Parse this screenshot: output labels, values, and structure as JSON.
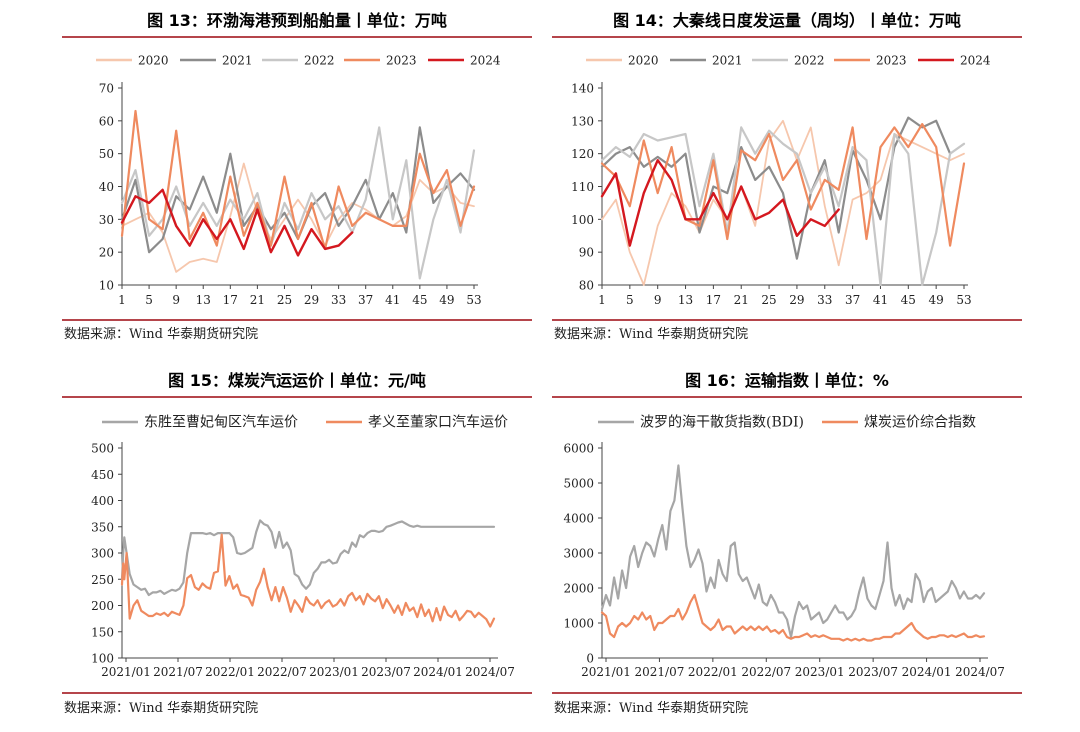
{
  "source_note": "数据来源：Wind 华泰期货研究院",
  "chart_data": [
    {
      "id": "c13",
      "type": "line",
      "title": "图 13：环渤海港预到船舶量丨单位：万吨",
      "xlabel": "",
      "ylabel": "",
      "ylim": [
        10,
        70
      ],
      "yticks": [
        "10",
        "20",
        "30",
        "40",
        "50",
        "60",
        "70"
      ],
      "xlim": [
        1,
        53
      ],
      "xticks": [
        "1",
        "5",
        "9",
        "13",
        "17",
        "21",
        "25",
        "29",
        "33",
        "37",
        "41",
        "45",
        "49",
        "53"
      ],
      "legend_position": "top",
      "x": [
        1,
        3,
        5,
        7,
        9,
        11,
        13,
        15,
        17,
        19,
        21,
        23,
        25,
        27,
        29,
        31,
        33,
        35,
        37,
        39,
        41,
        43,
        45,
        47,
        49,
        51,
        53
      ],
      "series": [
        {
          "name": "2020",
          "color": "#f6c7ad",
          "width": 1.8,
          "values": [
            28,
            30,
            32,
            26,
            14,
            17,
            18,
            17,
            31,
            47,
            32,
            24,
            30,
            36,
            30,
            22,
            30,
            35,
            33,
            30,
            28,
            31,
            42,
            38,
            40,
            35,
            34
          ]
        },
        {
          "name": "2021",
          "color": "#8c8c8c",
          "width": 2.2,
          "values": [
            30,
            42,
            20,
            24,
            37,
            33,
            43,
            32,
            50,
            28,
            34,
            27,
            32,
            24,
            34,
            38,
            28,
            34,
            42,
            30,
            38,
            26,
            58,
            35,
            40,
            44,
            39
          ]
        },
        {
          "name": "2022",
          "color": "#c7c7c7",
          "width": 2.2,
          "values": [
            35,
            45,
            25,
            30,
            40,
            28,
            35,
            28,
            36,
            30,
            38,
            22,
            35,
            27,
            38,
            30,
            34,
            26,
            36,
            58,
            30,
            48,
            12,
            30,
            42,
            26,
            51
          ]
        },
        {
          "name": "2023",
          "color": "#ef8a5f",
          "width": 2.2,
          "values": [
            25,
            63,
            30,
            27,
            57,
            24,
            32,
            22,
            43,
            25,
            35,
            22,
            43,
            24,
            35,
            21,
            40,
            28,
            32,
            30,
            28,
            28,
            50,
            38,
            45,
            28,
            40
          ]
        },
        {
          "name": "2024",
          "color": "#d4181f",
          "width": 2.4,
          "values": [
            29,
            37,
            35,
            39,
            28,
            22,
            30,
            24,
            30,
            21,
            33,
            20,
            28,
            19,
            27,
            21,
            22,
            26,
            null,
            null,
            null,
            null,
            null,
            null,
            null,
            null,
            null
          ]
        }
      ]
    },
    {
      "id": "c14",
      "type": "line",
      "title": "图 14：大秦线日度发运量（周均）丨单位：万吨",
      "xlabel": "",
      "ylabel": "",
      "ylim": [
        80,
        140
      ],
      "yticks": [
        "80",
        "90",
        "100",
        "110",
        "120",
        "130",
        "140"
      ],
      "xlim": [
        1,
        53
      ],
      "xticks": [
        "1",
        "5",
        "9",
        "13",
        "17",
        "21",
        "25",
        "29",
        "33",
        "37",
        "41",
        "45",
        "49",
        "53"
      ],
      "legend_position": "top",
      "x": [
        1,
        3,
        5,
        7,
        9,
        11,
        13,
        15,
        17,
        19,
        21,
        23,
        25,
        27,
        29,
        31,
        33,
        35,
        37,
        39,
        41,
        43,
        45,
        47,
        49,
        51,
        53
      ],
      "series": [
        {
          "name": "2020",
          "color": "#f6c7ad",
          "width": 1.8,
          "values": [
            100,
            106,
            90,
            80,
            98,
            108,
            104,
            96,
            106,
            100,
            110,
            98,
            124,
            130,
            118,
            128,
            104,
            86,
            106,
            108,
            112,
            126,
            124,
            122,
            120,
            118,
            120
          ]
        },
        {
          "name": "2021",
          "color": "#8c8c8c",
          "width": 2.2,
          "values": [
            116,
            120,
            122,
            116,
            119,
            116,
            120,
            96,
            110,
            108,
            122,
            112,
            116,
            108,
            88,
            108,
            118,
            96,
            121,
            112,
            100,
            122,
            131,
            128,
            130,
            120,
            null
          ]
        },
        {
          "name": "2022",
          "color": "#c7c7c7",
          "width": 2.2,
          "values": [
            118,
            122,
            119,
            126,
            124,
            125,
            126,
            104,
            120,
            96,
            128,
            120,
            127,
            123,
            120,
            108,
            116,
            104,
            122,
            118,
            80,
            126,
            120,
            80,
            96,
            120,
            123
          ]
        },
        {
          "name": "2023",
          "color": "#ef8a5f",
          "width": 2.2,
          "values": [
            117,
            113,
            104,
            124,
            108,
            122,
            100,
            98,
            118,
            94,
            121,
            118,
            126,
            112,
            118,
            103,
            112,
            109,
            128,
            94,
            122,
            128,
            122,
            129,
            122,
            92,
            117
          ]
        },
        {
          "name": "2024",
          "color": "#d4181f",
          "width": 2.4,
          "values": [
            107,
            114,
            92,
            108,
            118,
            112,
            100,
            100,
            108,
            100,
            110,
            100,
            102,
            106,
            95,
            100,
            98,
            103,
            null,
            null,
            null,
            null,
            null,
            null,
            null,
            null,
            null
          ]
        }
      ]
    },
    {
      "id": "c15",
      "type": "line",
      "title": "图 15：煤炭汽运运价丨单位：元/吨",
      "xlabel": "",
      "ylabel": "",
      "ylim": [
        100,
        500
      ],
      "yticks": [
        "100",
        "150",
        "200",
        "250",
        "300",
        "350",
        "400",
        "450",
        "500"
      ],
      "xticks": [
        "2021/01",
        "2021/07",
        "2022/01",
        "2022/07",
        "2023/01",
        "2023/07",
        "2024/01",
        "2024/07"
      ],
      "legend_position": "top",
      "x": [
        0,
        0.15,
        0.3,
        0.6,
        1,
        1.5,
        2,
        2.5,
        3,
        3.5,
        4,
        4.5,
        5,
        5.5,
        6,
        6.5,
        7,
        7.5,
        8,
        8.5,
        9,
        9.5,
        10,
        10.5,
        11,
        11.5,
        12,
        12.5,
        13,
        13.5,
        14,
        14.5,
        15,
        15.5,
        16,
        16.5,
        17,
        17.5,
        18,
        18.5,
        19,
        19.5,
        20,
        20.5,
        21,
        21.5,
        22,
        22.5,
        23,
        23.5,
        24,
        24.5,
        25,
        25.5,
        26,
        26.5,
        27,
        27.5,
        28,
        28.5,
        29,
        29.5,
        30,
        30.5,
        31,
        31.5,
        32,
        32.5,
        33,
        33.5,
        34,
        34.5,
        35,
        35.5,
        36,
        36.5,
        37,
        37.5,
        38,
        38.5,
        39,
        39.5,
        40,
        40.5,
        41,
        41.5,
        42,
        42.5,
        43,
        43.5,
        44,
        44.5,
        45,
        45.5,
        46,
        46.5,
        47,
        47.5,
        48,
        48.5
      ],
      "series": [
        {
          "name": "东胜至曹妃甸区汽车运价",
          "color": "#a6a6a6",
          "width": 2.2,
          "values": [
            250,
            300,
            330,
            300,
            260,
            240,
            235,
            230,
            232,
            220,
            225,
            225,
            228,
            222,
            226,
            230,
            228,
            232,
            244,
            300,
            338,
            338,
            338,
            338,
            336,
            338,
            334,
            338,
            338,
            338,
            338,
            330,
            300,
            298,
            300,
            305,
            310,
            340,
            362,
            355,
            352,
            340,
            310,
            340,
            310,
            320,
            305,
            260,
            255,
            240,
            232,
            240,
            262,
            270,
            282,
            282,
            287,
            280,
            282,
            298,
            305,
            300,
            320,
            312,
            334,
            330,
            338,
            342,
            342,
            340,
            342,
            350,
            352,
            355,
            358,
            360,
            356,
            352,
            350,
            352,
            350,
            350,
            350,
            350,
            350,
            350,
            350,
            350,
            350,
            350,
            350,
            350,
            350,
            350,
            350,
            350,
            350,
            350,
            350,
            350
          ]
        },
        {
          "name": "孝义至董家口汽车运价",
          "color": "#ef8a5f",
          "width": 2.2,
          "values": [
            240,
            280,
            250,
            300,
            175,
            200,
            210,
            190,
            185,
            180,
            180,
            185,
            182,
            186,
            180,
            188,
            185,
            182,
            200,
            252,
            258,
            235,
            230,
            242,
            235,
            232,
            262,
            265,
            335,
            238,
            256,
            232,
            240,
            220,
            218,
            215,
            200,
            230,
            245,
            270,
            235,
            210,
            235,
            208,
            235,
            215,
            188,
            210,
            200,
            188,
            216,
            205,
            200,
            210,
            195,
            205,
            210,
            198,
            202,
            212,
            200,
            218,
            224,
            210,
            218,
            202,
            222,
            213,
            208,
            218,
            195,
            212,
            200,
            186,
            200,
            182,
            205,
            190,
            196,
            178,
            202,
            180,
            192,
            170,
            195,
            172,
            198,
            182,
            178,
            190,
            172,
            180,
            190,
            188,
            178,
            186,
            180,
            174,
            160,
            175
          ]
        }
      ]
    },
    {
      "id": "c16",
      "type": "line",
      "title": "图 16：运输指数丨单位：%",
      "xlabel": "",
      "ylabel": "",
      "ylim": [
        0,
        6000
      ],
      "yticks": [
        "0",
        "1000",
        "2000",
        "3000",
        "4000",
        "5000",
        "6000"
      ],
      "xticks": [
        "2021/01",
        "2021/07",
        "2022/01",
        "2022/07",
        "2023/01",
        "2023/07",
        "2024/01",
        "2024/07"
      ],
      "legend_position": "top",
      "x": [
        0,
        1,
        2,
        3,
        4,
        5,
        6,
        7,
        8,
        9,
        10,
        11,
        12,
        13,
        14,
        15,
        16,
        17,
        18,
        19,
        20,
        21,
        22,
        23,
        24,
        25,
        26,
        27,
        28,
        29,
        30,
        31,
        32,
        33,
        34,
        35,
        36,
        37,
        38,
        39,
        40,
        41,
        42,
        43,
        44,
        45,
        46,
        47,
        48,
        49,
        50,
        51,
        52,
        53,
        54,
        55,
        56,
        57,
        58,
        59,
        60,
        61,
        62,
        63,
        64,
        65,
        66,
        67,
        68,
        69,
        70,
        71,
        72,
        73,
        74,
        75,
        76,
        77,
        78,
        79,
        80,
        81,
        82,
        83,
        84,
        85,
        86,
        87,
        88,
        89,
        90,
        91,
        92,
        93,
        94,
        95
      ],
      "series": [
        {
          "name": "波罗的海干散货指数(BDI)",
          "color": "#a6a6a6",
          "width": 2.2,
          "values": [
            1400,
            1800,
            1500,
            2300,
            1700,
            2500,
            2000,
            2900,
            3200,
            2600,
            3000,
            3300,
            3200,
            2900,
            3400,
            3800,
            3100,
            4200,
            4500,
            5500,
            4300,
            3200,
            2600,
            2800,
            3100,
            2700,
            1900,
            2300,
            2000,
            2800,
            2400,
            2200,
            3200,
            3300,
            2400,
            2200,
            2300,
            2000,
            1700,
            2100,
            1600,
            1500,
            1800,
            1600,
            1300,
            1300,
            1100,
            600,
            1200,
            1600,
            1400,
            1500,
            1100,
            1200,
            1300,
            1000,
            1100,
            1300,
            1500,
            1300,
            1300,
            1100,
            1200,
            1400,
            1900,
            2300,
            1700,
            1500,
            1400,
            1800,
            2200,
            3300,
            2000,
            1500,
            1800,
            1400,
            1700,
            1600,
            2400,
            2200,
            1600,
            1900,
            2000,
            1600,
            1700,
            1800,
            1900,
            2200,
            2000,
            1700,
            1900,
            1700,
            1700,
            1800,
            1700,
            1850
          ]
        },
        {
          "name": "煤炭运价综合指数",
          "color": "#ef8a5f",
          "width": 2.2,
          "values": [
            1300,
            1200,
            700,
            600,
            900,
            1000,
            900,
            1000,
            1200,
            1100,
            1300,
            1100,
            1200,
            800,
            1000,
            1000,
            1100,
            1200,
            1200,
            1400,
            1100,
            1300,
            1600,
            1800,
            1400,
            1000,
            900,
            800,
            900,
            1100,
            800,
            900,
            900,
            700,
            800,
            900,
            800,
            900,
            800,
            900,
            800,
            900,
            750,
            800,
            700,
            800,
            600,
            550,
            600,
            600,
            650,
            700,
            600,
            650,
            600,
            650,
            600,
            550,
            550,
            550,
            500,
            550,
            500,
            550,
            500,
            550,
            500,
            500,
            550,
            550,
            600,
            600,
            600,
            700,
            700,
            800,
            900,
            1000,
            800,
            700,
            600,
            550,
            600,
            600,
            650,
            650,
            600,
            650,
            600,
            650,
            700,
            600,
            600,
            650,
            600,
            620
          ]
        }
      ]
    }
  ]
}
